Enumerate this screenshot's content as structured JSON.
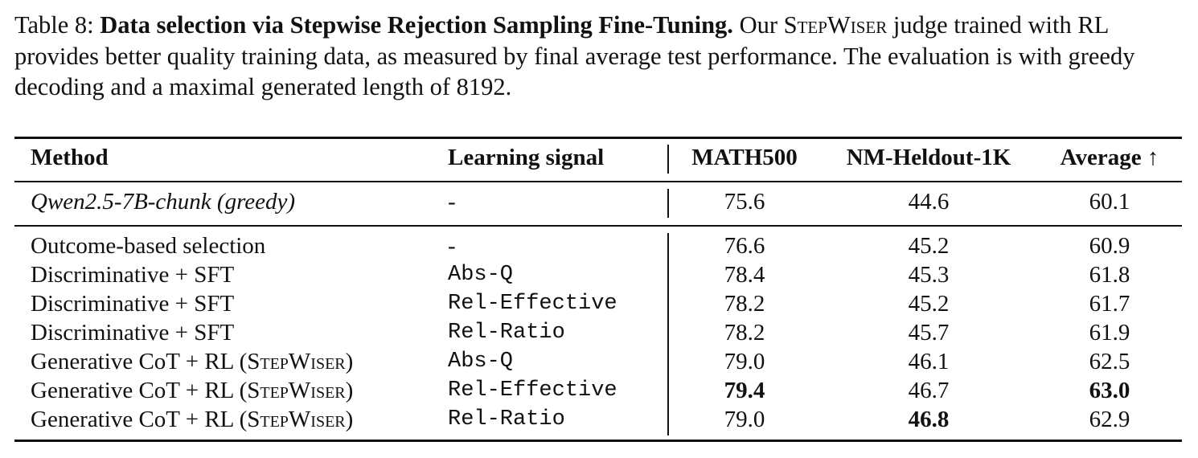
{
  "caption": {
    "label": "Table 8:",
    "bold": "Data selection via Stepwise Rejection Sampling Fine-Tuning.",
    "before": "Our",
    "name": "StepWiser",
    "after": "judge trained with RL provides better quality training data, as measured by final average test performance. The evaluation is with greedy decoding and a maximal generated length of 8192."
  },
  "table": {
    "header": {
      "method": "Method",
      "signal": "Learning signal",
      "math500": "MATH500",
      "nm": "NM-Heldout-1K",
      "average": "Average ↑"
    },
    "groups": [
      {
        "rows": [
          {
            "method": [
              "Qwen2.5-7B-chunk (greedy)"
            ],
            "italic": true,
            "signal": "-",
            "math500": "75.6",
            "nm": "44.6",
            "average": "60.1"
          }
        ]
      },
      {
        "rows": [
          {
            "method": [
              "Outcome-based selection"
            ],
            "signal": "-",
            "math500": "76.6",
            "nm": "45.2",
            "average": "60.9"
          },
          {
            "method": [
              "Discriminative + SFT"
            ],
            "signal": "Abs-Q",
            "math500": "78.4",
            "nm": "45.3",
            "average": "61.8"
          },
          {
            "method": [
              "Discriminative + SFT"
            ],
            "signal": "Rel-Effective",
            "math500": "78.2",
            "nm": "45.2",
            "average": "61.7"
          },
          {
            "method": [
              "Discriminative + SFT"
            ],
            "signal": "Rel-Ratio",
            "math500": "78.2",
            "nm": "45.7",
            "average": "61.9"
          },
          {
            "method": [
              "Generative CoT + RL (",
              "StepWiser",
              ")"
            ],
            "signal": "Abs-Q",
            "math500": "79.0",
            "nm": "46.1",
            "average": "62.5"
          },
          {
            "method": [
              "Generative CoT + RL (",
              "StepWiser",
              ")"
            ],
            "signal": "Rel-Effective",
            "math500": "79.4",
            "nm": "46.7",
            "average": "63.0",
            "bold": [
              "math500",
              "average"
            ]
          },
          {
            "method": [
              "Generative CoT + RL (",
              "StepWiser",
              ")"
            ],
            "signal": "Rel-Ratio",
            "math500": "79.0",
            "nm": "46.8",
            "average": "62.9",
            "bold": [
              "nm"
            ]
          }
        ]
      }
    ]
  }
}
